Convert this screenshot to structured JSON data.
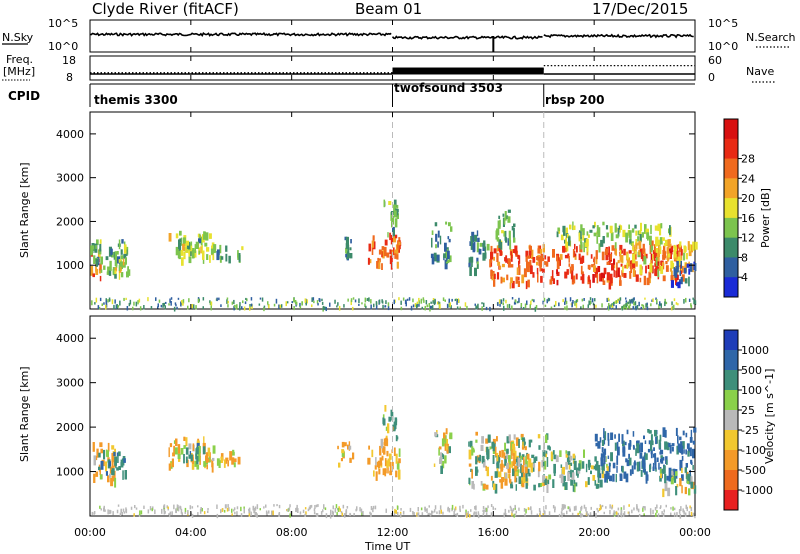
{
  "header": {
    "title": "Clyde River (fitACF)",
    "beam": "Beam 01",
    "date": "17/Dec/2015"
  },
  "top_panel": {
    "left_label": "N.Sky",
    "left_ticks": [
      "10^5",
      "10^0"
    ],
    "right_label": "N.Search",
    "right_ticks": [
      "10^5",
      "10^0"
    ]
  },
  "freq_panel": {
    "left_label_1": "Freq.",
    "left_label_2": "[MHz]",
    "left_ticks": [
      "18",
      "8"
    ],
    "right_label": "Nave",
    "right_ticks": [
      "60",
      "0"
    ]
  },
  "cpid": {
    "label": "CPID",
    "segments": [
      {
        "name": "themis 3300",
        "start_h": 0
      },
      {
        "name": "twofsound 3503",
        "start_h": 12
      },
      {
        "name": "rbsp 200",
        "start_h": 18
      }
    ]
  },
  "axes": {
    "ylabel": "Slant Range [km]",
    "xlabel": "Time UT",
    "x_ticks": [
      "00:00",
      "04:00",
      "08:00",
      "12:00",
      "16:00",
      "20:00",
      "00:00"
    ],
    "y_ticks": [
      "1000",
      "2000",
      "3000",
      "4000"
    ]
  },
  "colorbars": {
    "power": {
      "label": "Power [dB]",
      "ticks": [
        "4",
        "8",
        "12",
        "16",
        "20",
        "24",
        "28"
      ],
      "colors": [
        "#1a2bd6",
        "#2f5fa0",
        "#3c8a6a",
        "#7cc44e",
        "#e8e22f",
        "#f2a428",
        "#f06a1e",
        "#e82a14",
        "#d81010"
      ]
    },
    "velocity": {
      "label": "Velocity [m s^-1]",
      "ticks": [
        "1000",
        "500",
        "100",
        "25",
        "-25",
        "-100",
        "-500",
        "-1000"
      ],
      "colors": [
        "#1f3db8",
        "#2f66a8",
        "#3e8f7a",
        "#8ad04a",
        "#b9b9b9",
        "#f2c830",
        "#f39a28",
        "#ee6a1e",
        "#e82020"
      ]
    }
  },
  "chart_data": [
    {
      "type": "line",
      "panel": "N.Sky / N.Search",
      "x_range_h": [
        0,
        24
      ],
      "y_scale": "log",
      "ylim": [
        1,
        100000
      ],
      "series": [
        {
          "segments": [
            {
              "start_h": 0,
              "end_h": 12,
              "level": 0.55
            },
            {
              "start_h": 12,
              "end_h": 18,
              "level": 0.45
            },
            {
              "start_h": 18,
              "end_h": 24,
              "level": 0.5
            }
          ]
        }
      ]
    },
    {
      "type": "line",
      "panel": "Freq. / Nave",
      "x_range_h": [
        0,
        24
      ],
      "freq_ylim": [
        8,
        18
      ],
      "nave_ylim": [
        0,
        60
      ],
      "freq_segments": [
        {
          "start_h": 0,
          "end_h": 12,
          "value": 10.5
        },
        {
          "start_h": 12,
          "end_h": 18,
          "value": "alternating 10.5-13"
        },
        {
          "start_h": 18,
          "end_h": 24,
          "value": 10.5
        }
      ],
      "nave_segments": [
        {
          "start_h": 0,
          "end_h": 12,
          "value": 18
        },
        {
          "start_h": 12,
          "end_h": 18,
          "value": 27
        },
        {
          "start_h": 18,
          "end_h": 24,
          "value": 36
        }
      ]
    },
    {
      "type": "heatmap",
      "panel": "power",
      "x_range_h": [
        0,
        24
      ],
      "ylim": [
        0,
        4500
      ],
      "patches": [
        {
          "t0": 0.0,
          "t1": 0.4,
          "r0": 750,
          "r1": 1450,
          "v": 26
        },
        {
          "t0": 0.4,
          "t1": 1.2,
          "r0": 800,
          "r1": 1350,
          "v": 14
        },
        {
          "t0": 0.0,
          "t1": 1.5,
          "r0": 1050,
          "r1": 1600,
          "v": 12
        },
        {
          "t0": 0.9,
          "t1": 1.6,
          "r0": 800,
          "r1": 1200,
          "v": 18
        },
        {
          "t0": 3.1,
          "t1": 4.9,
          "r0": 1150,
          "r1": 1800,
          "v": 17
        },
        {
          "t0": 3.4,
          "t1": 4.4,
          "r0": 1300,
          "r1": 1650,
          "v": 12
        },
        {
          "t0": 5.0,
          "t1": 5.5,
          "r0": 1150,
          "r1": 1550,
          "v": 10
        },
        {
          "t0": 5.7,
          "t1": 6.0,
          "r0": 1200,
          "r1": 1550,
          "v": 12
        },
        {
          "t0": 9.8,
          "t1": 10.4,
          "r0": 1200,
          "r1": 1700,
          "v": 9
        },
        {
          "t0": 11.0,
          "t1": 12.3,
          "r0": 1000,
          "r1": 1750,
          "v": 26
        },
        {
          "t0": 11.6,
          "t1": 12.2,
          "r0": 1750,
          "r1": 2500,
          "v": 12
        },
        {
          "t0": 13.5,
          "t1": 14.3,
          "r0": 1100,
          "r1": 2000,
          "v": 10
        },
        {
          "t0": 15.0,
          "t1": 15.8,
          "r0": 900,
          "r1": 1800,
          "v": 9
        },
        {
          "t0": 15.8,
          "t1": 18.3,
          "r0": 600,
          "r1": 1500,
          "v": 27
        },
        {
          "t0": 16.0,
          "t1": 16.8,
          "r0": 1500,
          "r1": 2300,
          "v": 12
        },
        {
          "t0": 18.3,
          "t1": 23.5,
          "r0": 650,
          "r1": 1500,
          "v": 28
        },
        {
          "t0": 18.5,
          "t1": 23.0,
          "r0": 1500,
          "r1": 2000,
          "v": 15
        },
        {
          "t0": 21.0,
          "t1": 24.0,
          "r0": 900,
          "r1": 1600,
          "v": 20
        },
        {
          "t0": 23.0,
          "t1": 24.0,
          "r0": 600,
          "r1": 1100,
          "v": 6
        }
      ]
    },
    {
      "type": "heatmap",
      "panel": "velocity",
      "x_range_h": [
        0,
        24
      ],
      "ylim": [
        0,
        4500
      ],
      "patches": [
        {
          "t0": 0.0,
          "t1": 1.0,
          "r0": 850,
          "r1": 1700,
          "v": -200
        },
        {
          "t0": 0.3,
          "t1": 1.4,
          "r0": 1000,
          "r1": 1500,
          "v": 400
        },
        {
          "t0": 3.1,
          "t1": 4.9,
          "r0": 1150,
          "r1": 1800,
          "v": -150
        },
        {
          "t0": 3.6,
          "t1": 4.6,
          "r0": 1300,
          "r1": 1650,
          "v": 300
        },
        {
          "t0": 5.0,
          "t1": 6.0,
          "r0": 1200,
          "r1": 1550,
          "v": -150
        },
        {
          "t0": 9.8,
          "t1": 10.4,
          "r0": 1200,
          "r1": 1700,
          "v": -200
        },
        {
          "t0": 11.0,
          "t1": 12.3,
          "r0": 1000,
          "r1": 1750,
          "v": -200
        },
        {
          "t0": 11.6,
          "t1": 12.2,
          "r0": 1750,
          "r1": 2500,
          "v": 80
        },
        {
          "t0": 13.5,
          "t1": 14.3,
          "r0": 1100,
          "r1": 2000,
          "v": 0
        },
        {
          "t0": 15.0,
          "t1": 18.3,
          "r0": 700,
          "r1": 1900,
          "v": 80
        },
        {
          "t0": 16.2,
          "t1": 17.2,
          "r0": 800,
          "r1": 1500,
          "v": -150
        },
        {
          "t0": 18.3,
          "t1": 20.5,
          "r0": 700,
          "r1": 1500,
          "v": 150
        },
        {
          "t0": 20.0,
          "t1": 24.0,
          "r0": 900,
          "r1": 2000,
          "v": 600
        },
        {
          "t0": 22.5,
          "t1": 24.0,
          "r0": 600,
          "r1": 1100,
          "v": 80
        }
      ]
    }
  ]
}
